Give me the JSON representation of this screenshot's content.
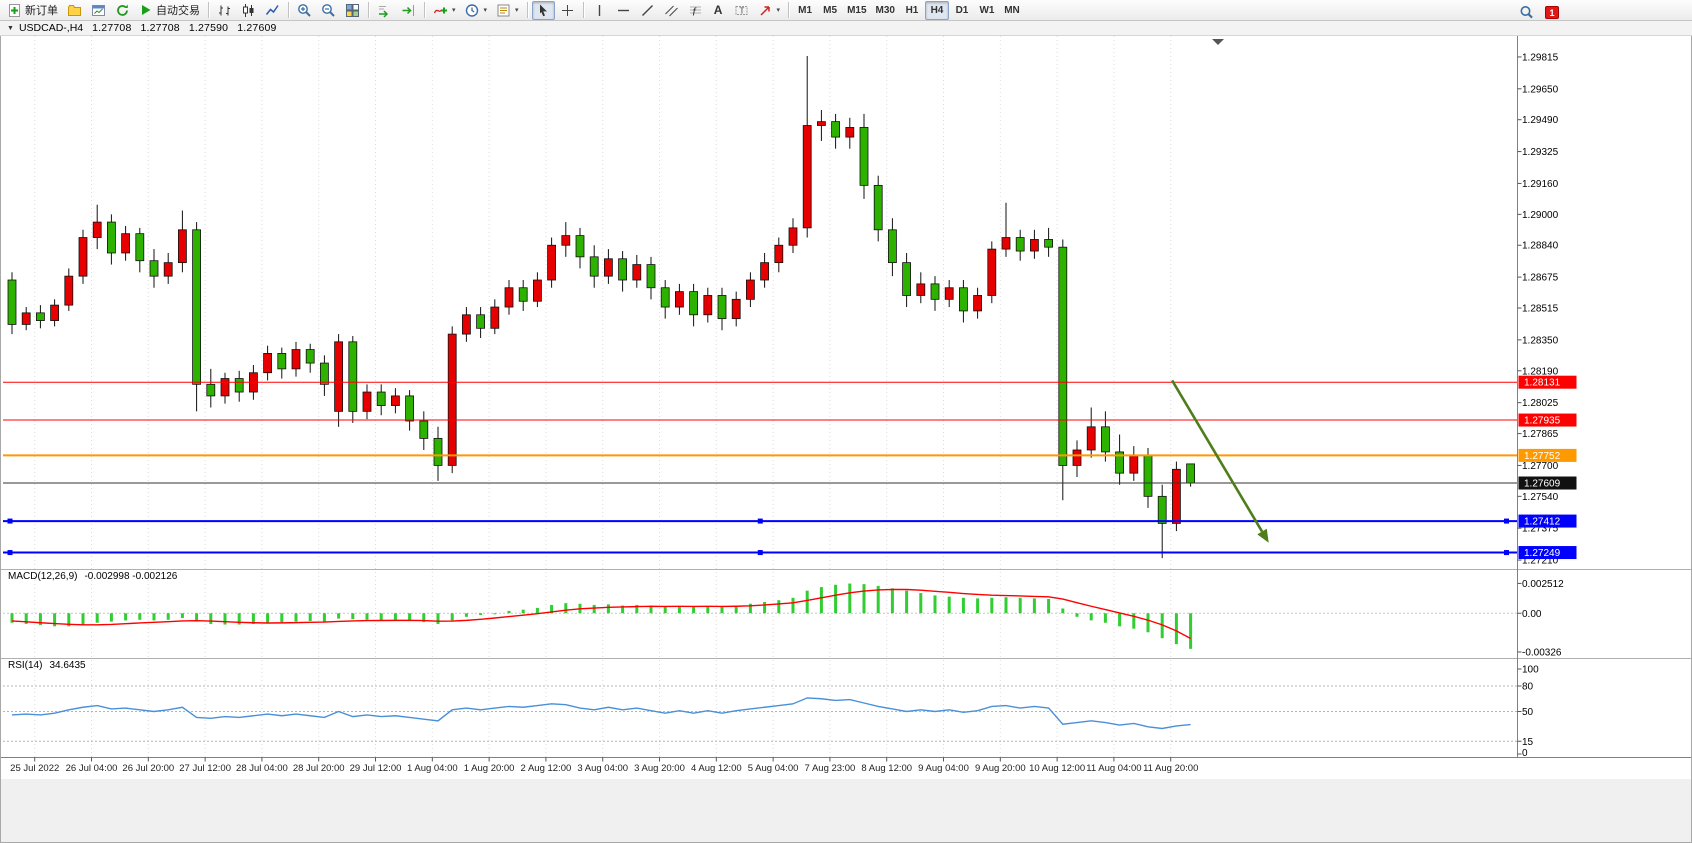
{
  "app": {
    "toolbar": {
      "new_order": "新订单",
      "auto_trading": "自动交易",
      "text_tool_glyph": "A",
      "timeframes": [
        "M1",
        "M5",
        "M15",
        "M30",
        "H1",
        "H4",
        "D1",
        "W1",
        "MN"
      ],
      "active_timeframe": "H4",
      "notification_count": "1",
      "icons": [
        "new-order-icon",
        "profiles-icon",
        "market-watch-icon",
        "refresh-icon",
        "auto-trading-icon",
        "bar-chart-icon",
        "candlestick-chart-icon",
        "line-chart-icon",
        "zoom-in-icon",
        "zoom-out-icon",
        "tile-windows-icon",
        "auto-scroll-icon",
        "chart-shift-icon",
        "indicators-icon",
        "periods-icon",
        "templates-icon",
        "cursor-icon",
        "crosshair-icon",
        "vertical-line-icon",
        "horizontal-line-icon",
        "trendline-icon",
        "channel-icon",
        "fibonacci-icon",
        "text-icon",
        "text-label-icon",
        "arrows-icon",
        "search-icon"
      ]
    },
    "chart_title": {
      "symbol": "USDCAD-,H4",
      "open": "1.27708",
      "high": "1.27708",
      "low": "1.27590",
      "close": "1.27609"
    }
  },
  "chart_data": {
    "type": "candlestick",
    "symbol": "USDCAD",
    "timeframe": "H4",
    "ylim": [
      1.27169,
      1.29913
    ],
    "price_axis": {
      "ticks": [
        "1.29815",
        "1.29650",
        "1.29490",
        "1.29325",
        "1.29160",
        "1.29000",
        "1.28840",
        "1.28675",
        "1.28515",
        "1.28350",
        "1.28190",
        "1.28025",
        "1.27865",
        "1.27700",
        "1.27540",
        "1.27375",
        "1.27210"
      ]
    },
    "x_labels": [
      "25 Jul 2022",
      "26 Jul 04:00",
      "26 Jul 20:00",
      "27 Jul 12:00",
      "28 Jul 04:00",
      "28 Jul 20:00",
      "29 Jul 12:00",
      "1 Aug 04:00",
      "1 Aug 20:00",
      "2 Aug 12:00",
      "3 Aug 04:00",
      "3 Aug 20:00",
      "4 Aug 12:00",
      "5 Aug 04:00",
      "7 Aug 23:00",
      "8 Aug 12:00",
      "9 Aug 04:00",
      "9 Aug 20:00",
      "10 Aug 12:00",
      "11 Aug 04:00",
      "11 Aug 20:00"
    ],
    "colors": {
      "up": "#E60000",
      "down": "#2DB200",
      "wick": "#111111"
    },
    "candles": [
      [
        1.2866,
        1.287,
        1.2838,
        1.2843
      ],
      [
        1.2843,
        1.2852,
        1.284,
        1.2849
      ],
      [
        1.2849,
        1.2853,
        1.2841,
        1.2845
      ],
      [
        1.2845,
        1.2856,
        1.2842,
        1.2853
      ],
      [
        1.2853,
        1.2872,
        1.285,
        1.2868
      ],
      [
        1.2868,
        1.2892,
        1.2864,
        1.2888
      ],
      [
        1.2888,
        1.2905,
        1.2882,
        1.2896
      ],
      [
        1.2896,
        1.29,
        1.2874,
        1.288
      ],
      [
        1.288,
        1.2894,
        1.2876,
        1.289
      ],
      [
        1.289,
        1.2893,
        1.287,
        1.2876
      ],
      [
        1.2876,
        1.2882,
        1.2862,
        1.2868
      ],
      [
        1.2868,
        1.288,
        1.2864,
        1.2875
      ],
      [
        1.2875,
        1.2902,
        1.287,
        1.2892
      ],
      [
        1.2892,
        1.2896,
        1.2798,
        1.2812
      ],
      [
        1.2812,
        1.282,
        1.28,
        1.2806
      ],
      [
        1.2806,
        1.2818,
        1.2802,
        1.2815
      ],
      [
        1.2815,
        1.2819,
        1.2803,
        1.2808
      ],
      [
        1.2808,
        1.2822,
        1.2804,
        1.2818
      ],
      [
        1.2818,
        1.2832,
        1.2814,
        1.2828
      ],
      [
        1.2828,
        1.2831,
        1.2815,
        1.282
      ],
      [
        1.282,
        1.2834,
        1.2816,
        1.283
      ],
      [
        1.283,
        1.2833,
        1.2818,
        1.2823
      ],
      [
        1.2823,
        1.2827,
        1.2806,
        1.2812
      ],
      [
        1.2798,
        1.2838,
        1.279,
        1.2834
      ],
      [
        1.2834,
        1.2837,
        1.2792,
        1.2798
      ],
      [
        1.2798,
        1.2812,
        1.2794,
        1.2808
      ],
      [
        1.2808,
        1.2812,
        1.2796,
        1.2801
      ],
      [
        1.2801,
        1.281,
        1.2797,
        1.2806
      ],
      [
        1.2806,
        1.2809,
        1.2788,
        1.2793
      ],
      [
        1.2793,
        1.2798,
        1.2778,
        1.2784
      ],
      [
        1.2784,
        1.279,
        1.2762,
        1.277
      ],
      [
        1.277,
        1.2842,
        1.2766,
        1.2838
      ],
      [
        1.2838,
        1.2852,
        1.2834,
        1.2848
      ],
      [
        1.2848,
        1.2852,
        1.2836,
        1.2841
      ],
      [
        1.2841,
        1.2856,
        1.2838,
        1.2852
      ],
      [
        1.2852,
        1.2866,
        1.2848,
        1.2862
      ],
      [
        1.2862,
        1.2866,
        1.285,
        1.2855
      ],
      [
        1.2855,
        1.287,
        1.2852,
        1.2866
      ],
      [
        1.2866,
        1.2888,
        1.2862,
        1.2884
      ],
      [
        1.2884,
        1.2896,
        1.2878,
        1.2889
      ],
      [
        1.2889,
        1.2893,
        1.2872,
        1.2878
      ],
      [
        1.2878,
        1.2884,
        1.2862,
        1.2868
      ],
      [
        1.2868,
        1.2882,
        1.2864,
        1.2877
      ],
      [
        1.2877,
        1.2881,
        1.286,
        1.2866
      ],
      [
        1.2866,
        1.2879,
        1.2862,
        1.2874
      ],
      [
        1.2874,
        1.2878,
        1.2856,
        1.2862
      ],
      [
        1.2862,
        1.2866,
        1.2846,
        1.2852
      ],
      [
        1.2852,
        1.2864,
        1.2848,
        1.286
      ],
      [
        1.286,
        1.2864,
        1.2842,
        1.2848
      ],
      [
        1.2848,
        1.2862,
        1.2844,
        1.2858
      ],
      [
        1.2858,
        1.2862,
        1.284,
        1.2846
      ],
      [
        1.2846,
        1.286,
        1.2842,
        1.2856
      ],
      [
        1.2856,
        1.287,
        1.2852,
        1.2866
      ],
      [
        1.2866,
        1.288,
        1.2862,
        1.2875
      ],
      [
        1.2875,
        1.2888,
        1.287,
        1.2884
      ],
      [
        1.2884,
        1.2898,
        1.288,
        1.2893
      ],
      [
        1.2893,
        1.2982,
        1.2888,
        1.2946
      ],
      [
        1.2946,
        1.2954,
        1.2938,
        1.2948
      ],
      [
        1.2948,
        1.2952,
        1.2934,
        1.294
      ],
      [
        1.294,
        1.295,
        1.2934,
        1.2945
      ],
      [
        1.2945,
        1.2952,
        1.2908,
        1.2915
      ],
      [
        1.2915,
        1.292,
        1.2886,
        1.2892
      ],
      [
        1.2892,
        1.2898,
        1.2868,
        1.2875
      ],
      [
        1.2875,
        1.288,
        1.2852,
        1.2858
      ],
      [
        1.2858,
        1.287,
        1.2854,
        1.2864
      ],
      [
        1.2864,
        1.2868,
        1.285,
        1.2856
      ],
      [
        1.2856,
        1.2866,
        1.2852,
        1.2862
      ],
      [
        1.2862,
        1.2866,
        1.2844,
        1.285
      ],
      [
        1.285,
        1.2862,
        1.2846,
        1.2858
      ],
      [
        1.2858,
        1.2886,
        1.2854,
        1.2882
      ],
      [
        1.2882,
        1.2906,
        1.2878,
        1.2888
      ],
      [
        1.2888,
        1.2892,
        1.2876,
        1.2881
      ],
      [
        1.2881,
        1.2892,
        1.2877,
        1.2887
      ],
      [
        1.2887,
        1.2893,
        1.2878,
        1.2883
      ],
      [
        1.2883,
        1.2887,
        1.2752,
        1.277
      ],
      [
        1.277,
        1.2783,
        1.2764,
        1.2778
      ],
      [
        1.2778,
        1.28,
        1.2774,
        1.279
      ],
      [
        1.279,
        1.2798,
        1.2772,
        1.2777
      ],
      [
        1.2777,
        1.2786,
        1.276,
        1.2766
      ],
      [
        1.2766,
        1.278,
        1.2762,
        1.2775
      ],
      [
        1.2775,
        1.2779,
        1.2748,
        1.2754
      ],
      [
        1.2754,
        1.276,
        1.2722,
        1.274
      ],
      [
        1.274,
        1.2772,
        1.2736,
        1.2768
      ],
      [
        1.27708,
        1.27708,
        1.2759,
        1.27609
      ]
    ],
    "hlines": [
      {
        "price": "1.28131",
        "value": 1.28131,
        "color": "#FF0000",
        "width": 1,
        "tag_bg": "#FF0000"
      },
      {
        "price": "1.27935",
        "value": 1.27935,
        "color": "#FF0000",
        "width": 1,
        "tag_bg": "#FF0000"
      },
      {
        "price": "1.27752",
        "value": 1.27752,
        "color": "#FF9900",
        "width": 2,
        "tag_bg": "#FF9900"
      },
      {
        "price": "1.27609",
        "value": 1.27609,
        "color": "#333333",
        "width": 1,
        "tag_bg": "#111111",
        "current": true
      },
      {
        "price": "1.27412",
        "value": 1.27412,
        "color": "#0000FF",
        "width": 2,
        "tag_bg": "#0000FF",
        "handles": true
      },
      {
        "price": "1.27249",
        "value": 1.27249,
        "color": "#0000FF",
        "width": 2,
        "tag_bg": "#0000FF",
        "handles": true
      }
    ],
    "arrow_annotation": {
      "from_candle": 81.7,
      "from_price": 1.2814,
      "to_candle": 88.5,
      "to_price": 1.273,
      "color": "#4E7D1A"
    },
    "indicators": {
      "macd": {
        "label": "MACD(12,26,9)",
        "values_label": "-0.002998 -0.002126",
        "axis_ticks": [
          "0.002512",
          "0.00",
          "-0.00326"
        ],
        "tick_values": [
          0.002512,
          0,
          -0.00326
        ],
        "range": [
          -0.0036,
          0.0028
        ],
        "histogram_color": "#32CD32",
        "signal_color": "#FF0000",
        "histogram": [
          -0.0008,
          -0.0009,
          -0.001,
          -0.0011,
          -0.0011,
          -0.001,
          -0.0008,
          -0.0007,
          -0.0006,
          -0.00055,
          -0.0006,
          -0.00055,
          -0.0004,
          -0.0007,
          -0.0009,
          -0.00095,
          -0.00095,
          -0.0009,
          -0.0008,
          -0.00075,
          -0.0007,
          -0.00065,
          -0.0007,
          -0.00045,
          -0.0005,
          -0.00055,
          -0.0006,
          -0.00055,
          -0.00065,
          -0.00075,
          -0.0009,
          -0.0006,
          -0.0003,
          -0.00015,
          0,
          0.0002,
          0.0003,
          0.00045,
          0.0007,
          0.00085,
          0.0008,
          0.0007,
          0.00075,
          0.00065,
          0.0007,
          0.00065,
          0.00055,
          0.0006,
          0.00055,
          0.0006,
          0.00055,
          0.00065,
          0.0008,
          0.00095,
          0.0011,
          0.0013,
          0.0019,
          0.0022,
          0.0024,
          0.0025,
          0.00245,
          0.0023,
          0.0021,
          0.0019,
          0.0017,
          0.0015,
          0.0014,
          0.0013,
          0.00125,
          0.0013,
          0.00135,
          0.0013,
          0.00125,
          0.0012,
          0.0004,
          -0.0003,
          -0.0006,
          -0.0008,
          -0.0011,
          -0.0013,
          -0.0016,
          -0.0021,
          -0.0026,
          -0.002998
        ],
        "signal": [
          -0.00065,
          -0.00072,
          -0.0008,
          -0.00087,
          -0.00093,
          -0.00097,
          -0.00097,
          -0.00094,
          -0.00088,
          -0.00082,
          -0.00076,
          -0.00071,
          -0.00065,
          -0.00063,
          -0.00066,
          -0.00071,
          -0.00076,
          -0.0008,
          -0.00082,
          -0.00081,
          -0.00079,
          -0.00076,
          -0.00074,
          -0.00069,
          -0.00065,
          -0.00062,
          -0.00061,
          -0.0006,
          -0.0006,
          -0.00062,
          -0.00067,
          -0.00066,
          -0.0006,
          -0.00051,
          -0.0004,
          -0.00028,
          -0.00016,
          -4e-05,
          0.00011,
          0.00026,
          0.00037,
          0.00044,
          0.0005,
          0.00053,
          0.00056,
          0.00058,
          0.00057,
          0.00058,
          0.00057,
          0.00058,
          0.00057,
          0.00059,
          0.00063,
          0.0007,
          0.00078,
          0.00088,
          0.00108,
          0.0013,
          0.00152,
          0.00172,
          0.00187,
          0.00196,
          0.002,
          0.002,
          0.00194,
          0.00185,
          0.00176,
          0.00166,
          0.00158,
          0.00152,
          0.00149,
          0.00146,
          0.00142,
          0.00138,
          0.00119,
          0.00089,
          0.00059,
          0.00031,
          3e-05,
          -0.00026,
          -0.00058,
          -0.00098,
          -0.00148,
          -0.002126
        ]
      },
      "rsi": {
        "label": "RSI(14)",
        "value_label": "34.6435",
        "axis_ticks": [
          "100",
          "80",
          "50",
          "15",
          "0"
        ],
        "tick_values": [
          100,
          80,
          50,
          15,
          0
        ],
        "levels": [
          80,
          50,
          15
        ],
        "range": [
          0,
          100
        ],
        "line_color": "#4A90D9",
        "values": [
          46,
          47,
          46,
          48,
          52,
          55,
          57,
          53,
          54,
          52,
          50,
          52,
          55,
          43,
          42,
          44,
          43,
          45,
          47,
          45,
          47,
          45,
          43,
          50,
          44,
          46,
          44,
          45,
          43,
          41,
          39,
          52,
          54,
          52,
          54,
          56,
          55,
          57,
          59,
          58,
          54,
          52,
          55,
          52,
          54,
          51,
          48,
          51,
          48,
          51,
          48,
          51,
          53,
          55,
          57,
          59,
          66,
          65,
          63,
          64,
          60,
          56,
          53,
          50,
          52,
          50,
          52,
          49,
          51,
          56,
          57,
          54,
          56,
          54,
          35,
          37,
          39,
          37,
          34,
          36,
          32,
          30,
          33,
          34.6
        ]
      }
    }
  }
}
